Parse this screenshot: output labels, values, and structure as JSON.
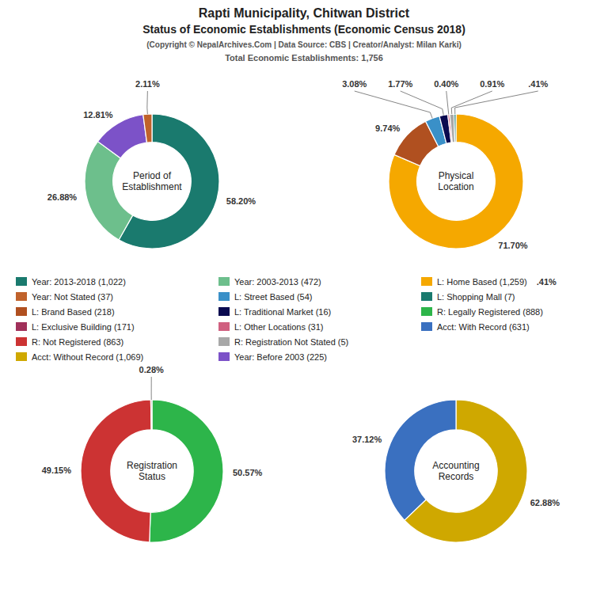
{
  "title": [
    "Rapti Municipality, Chitwan District",
    "Status of Economic Establishments (Economic Census 2018)"
  ],
  "subtitle": [
    "(Copyright © NepalArchives.Com | Data Source: CBS | Creator/Analyst: Milan Karki)",
    "Total Economic Establishments: 1,756"
  ],
  "chart_data": [
    {
      "type": "pie",
      "title": "Period of\nEstablishment",
      "values": [
        58.2,
        26.88,
        12.81,
        2.11
      ],
      "value_labels": [
        "58.20%",
        "26.88%",
        "12.81%",
        "2.11%"
      ],
      "colors": [
        "#1a7a6e",
        "#6dbf8c",
        "#7c52c8",
        "#c0622b"
      ],
      "data_labels": true
    },
    {
      "type": "pie",
      "title": "Physical\nLocation",
      "values": [
        71.7,
        9.74,
        3.08,
        1.77,
        0.4,
        0.91,
        0.41
      ],
      "value_labels": [
        "71.70%",
        "9.74%",
        "3.08%",
        "1.77%",
        "0.40%",
        "0.91%",
        ".41%"
      ],
      "colors": [
        "#f5a800",
        "#b05020",
        "#3a90c8",
        "#0a0a50",
        "#d06080",
        "#a8a8a8",
        "#1a7a6e"
      ],
      "data_labels": true
    },
    {
      "type": "pie",
      "title": "Registration\nStatus",
      "values": [
        50.57,
        49.15,
        0.28
      ],
      "value_labels": [
        "50.57%",
        "49.15%",
        "0.28%"
      ],
      "colors": [
        "#2db54a",
        "#cc3333",
        "#888888"
      ],
      "data_labels": true
    },
    {
      "type": "pie",
      "title": "Accounting\nRecords",
      "values": [
        62.88,
        37.12
      ],
      "value_labels": [
        "62.88%",
        "37.12%"
      ],
      "colors": [
        "#cfa800",
        "#3a70c0"
      ],
      "data_labels": true
    }
  ],
  "legend_items": [
    {
      "name": "Year: 2013-2018 (1,022)",
      "color": "#1a7a6e"
    },
    {
      "name": "Year: Not Stated (37)",
      "color": "#c0622b"
    },
    {
      "name": "L: Brand Based (218)",
      "color": "#b05020"
    },
    {
      "name": "L: Exclusive Building (171)",
      "color": "#a0305a"
    },
    {
      "name": "R: Not Registered (863)",
      "color": "#cc3333"
    },
    {
      "name": "Acct: Without Record (1,069)",
      "color": "#cfa800"
    },
    {
      "name": "Year: 2003-2013 (472)",
      "color": "#6dbf8c"
    },
    {
      "name": "L: Street Based (54)",
      "color": "#3a90c8"
    },
    {
      "name": "L: Traditional Market (16)",
      "color": "#0a0a50"
    },
    {
      "name": "L: Other Locations (31)",
      "color": "#d06080"
    },
    {
      "name": "R: Registration Not Stated (5)",
      "color": "#a8a8a8"
    },
    {
      "name": "Year: Before 2003 (225)",
      "color": "#7c52c8"
    },
    {
      "name": "L: Home Based (1,259)",
      "color": "#f5a800"
    },
    {
      "name": "L: Shopping Mall (7)",
      "color": "#1a7a6e"
    },
    {
      "name": "R: Legally Registered (888)",
      "color": "#2db54a"
    },
    {
      "name": "Acct: With Record (631)",
      "color": "#3a70c0"
    }
  ],
  "annotations": [
    {
      "text": ".41%"
    }
  ]
}
